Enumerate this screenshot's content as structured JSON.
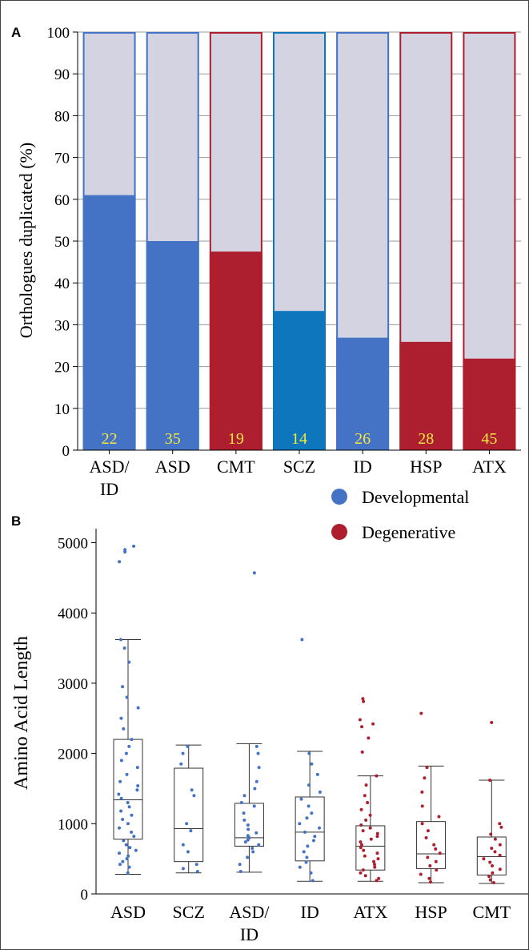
{
  "panels": {
    "a_label": "A",
    "b_label": "B"
  },
  "colors": {
    "developmental": "#4472c4",
    "developmental_alt": "#0e76bc",
    "degenerative": "#ad1f2e",
    "remainder": "#d3d3e2",
    "count_text": "#f5e642"
  },
  "chart_data": [
    {
      "type": "bar",
      "stacked": true,
      "ylabel": "Orthologues duplicated (%)",
      "ylim": [
        0,
        100
      ],
      "yticks": [
        0,
        10,
        20,
        30,
        40,
        50,
        60,
        70,
        80,
        90,
        100
      ],
      "categories": [
        {
          "label": [
            "ASD/",
            "ID"
          ],
          "value": 61,
          "count": "22",
          "group": "developmental"
        },
        {
          "label": [
            "ASD"
          ],
          "value": 50,
          "count": "35",
          "group": "developmental"
        },
        {
          "label": [
            "CMT"
          ],
          "value": 47.5,
          "count": "19",
          "group": "degenerative"
        },
        {
          "label": [
            "SCZ"
          ],
          "value": 33.3,
          "count": "14",
          "group": "developmental_alt"
        },
        {
          "label": [
            "ID"
          ],
          "value": 26.9,
          "count": "26",
          "group": "developmental"
        },
        {
          "label": [
            "HSP"
          ],
          "value": 25.9,
          "count": "28",
          "group": "degenerative"
        },
        {
          "label": [
            "ATX"
          ],
          "value": 21.9,
          "count": "45",
          "group": "degenerative"
        }
      ]
    },
    {
      "type": "box",
      "ylabel": "Amino Acid Length",
      "ylim": [
        0,
        5200
      ],
      "yticks": [
        0,
        1000,
        2000,
        3000,
        4000,
        5000
      ],
      "legend": [
        {
          "label": "Developmental",
          "group": "developmental"
        },
        {
          "label": "Degenerative",
          "group": "degenerative"
        }
      ],
      "legend_position": "top-right",
      "groups": [
        {
          "label": [
            "ASD"
          ],
          "group": "developmental",
          "whisker_low": 280,
          "q1": 780,
          "median": 1340,
          "q3": 2200,
          "whisker_high": 3620,
          "outliers": [
            4950,
            4900,
            4870,
            4730
          ],
          "points": [
            300,
            380,
            420,
            460,
            500,
            540,
            580,
            620,
            660,
            700,
            760,
            820,
            880,
            940,
            1000,
            1060,
            1120,
            1180,
            1240,
            1300,
            1360,
            1420,
            1480,
            1540,
            1600,
            1700,
            1800,
            1900,
            2000,
            2100,
            2200,
            2350,
            2500,
            2650,
            2800,
            2950,
            3300,
            3500,
            3620
          ]
        },
        {
          "label": [
            "SCZ"
          ],
          "group": "developmental",
          "whisker_low": 300,
          "q1": 460,
          "median": 930,
          "q3": 1790,
          "whisker_high": 2120,
          "outliers": [],
          "points": [
            320,
            360,
            420,
            600,
            700,
            900,
            1000,
            1400,
            1480,
            1850,
            2000,
            2100
          ]
        },
        {
          "label": [
            "ASD/",
            "ID"
          ],
          "group": "developmental",
          "whisker_low": 310,
          "q1": 680,
          "median": 800,
          "q3": 1290,
          "whisker_high": 2140,
          "outliers": [
            4570
          ],
          "points": [
            320,
            420,
            520,
            600,
            650,
            700,
            740,
            770,
            800,
            830,
            870,
            920,
            980,
            1050,
            1150,
            1250,
            1300,
            1400,
            1500,
            1600,
            1800,
            2000,
            2100
          ]
        },
        {
          "label": [
            "ID"
          ],
          "group": "developmental",
          "whisker_low": 180,
          "q1": 470,
          "median": 880,
          "q3": 1380,
          "whisker_high": 2030,
          "outliers": [
            3620
          ],
          "points": [
            190,
            300,
            380,
            450,
            520,
            600,
            680,
            760,
            820,
            880,
            940,
            1000,
            1080,
            1150,
            1250,
            1350,
            1450,
            1550,
            1700,
            1850,
            2000
          ]
        },
        {
          "label": [
            "ATX"
          ],
          "group": "degenerative",
          "whisker_low": 180,
          "q1": 340,
          "median": 680,
          "q3": 970,
          "whisker_high": 1680,
          "outliers": [
            2780,
            2740,
            2480,
            2420,
            2380,
            2220,
            2020
          ],
          "points": [
            190,
            220,
            260,
            300,
            340,
            380,
            420,
            460,
            500,
            540,
            580,
            620,
            660,
            700,
            740,
            780,
            820,
            860,
            900,
            940,
            980,
            1050,
            1120,
            1200,
            1300,
            1400,
            1550,
            1680
          ]
        },
        {
          "label": [
            "HSP"
          ],
          "group": "degenerative",
          "whisker_low": 160,
          "q1": 360,
          "median": 570,
          "q3": 1030,
          "whisker_high": 1820,
          "outliers": [
            2570
          ],
          "points": [
            170,
            220,
            280,
            340,
            400,
            460,
            520,
            580,
            640,
            700,
            800,
            900,
            1000,
            1100,
            1250,
            1450,
            1650,
            1800
          ]
        },
        {
          "label": [
            "CMT"
          ],
          "group": "degenerative",
          "whisker_low": 150,
          "q1": 270,
          "median": 530,
          "q3": 810,
          "whisker_high": 1620,
          "outliers": [
            2440
          ],
          "points": [
            160,
            200,
            250,
            300,
            350,
            400,
            450,
            500,
            550,
            600,
            650,
            700,
            780,
            850,
            950,
            1000,
            1620
          ]
        }
      ]
    }
  ]
}
